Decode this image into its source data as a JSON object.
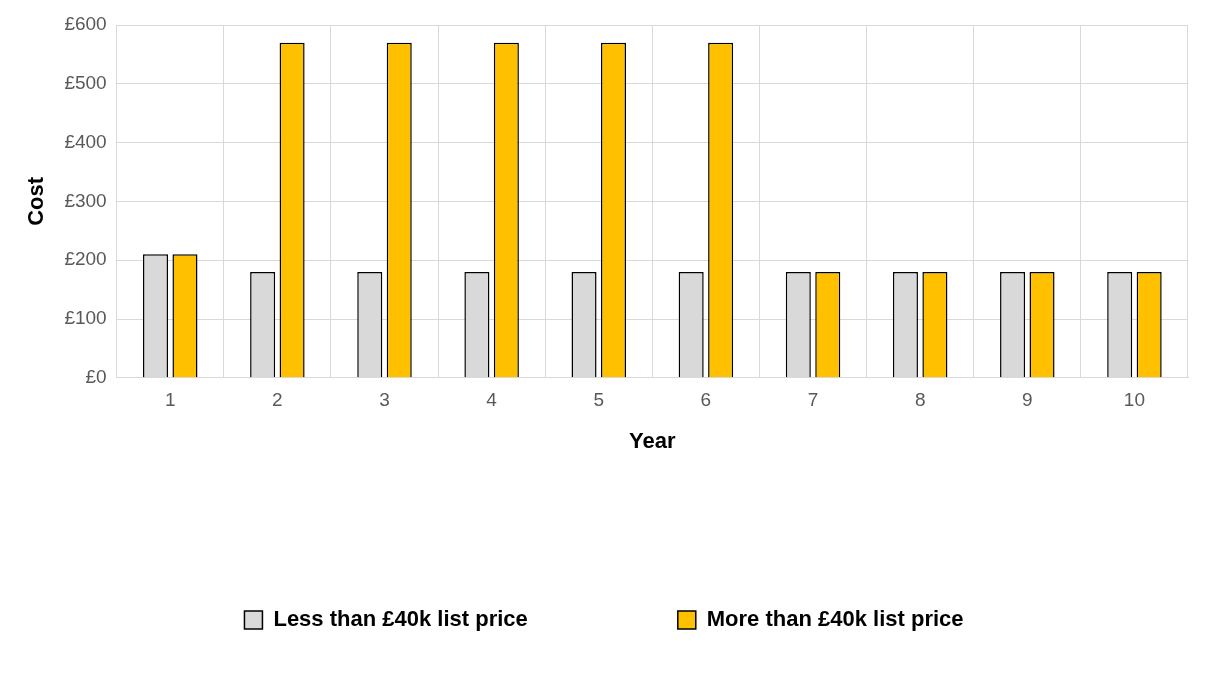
{
  "chart_data": {
    "type": "bar",
    "xlabel": "Year",
    "ylabel": "Cost",
    "categories": [
      "1",
      "2",
      "3",
      "4",
      "5",
      "6",
      "7",
      "8",
      "9",
      "10"
    ],
    "series": [
      {
        "name": "Less than £40k list price",
        "color": "#d9d9d9",
        "values": [
          210,
          180,
          180,
          180,
          180,
          180,
          180,
          180,
          180,
          180
        ]
      },
      {
        "name": "More than £40k list price",
        "color": "#ffc000",
        "values": [
          210,
          570,
          570,
          570,
          570,
          570,
          180,
          180,
          180,
          180
        ]
      }
    ],
    "ylim": [
      0,
      600
    ],
    "yticks": [
      {
        "value": 0,
        "label": "£0"
      },
      {
        "value": 100,
        "label": "£100"
      },
      {
        "value": 200,
        "label": "£200"
      },
      {
        "value": 300,
        "label": "£300"
      },
      {
        "value": 400,
        "label": "£400"
      },
      {
        "value": 500,
        "label": "£500"
      },
      {
        "value": 600,
        "label": "£600"
      }
    ],
    "grid": true,
    "legend": "bottom"
  }
}
